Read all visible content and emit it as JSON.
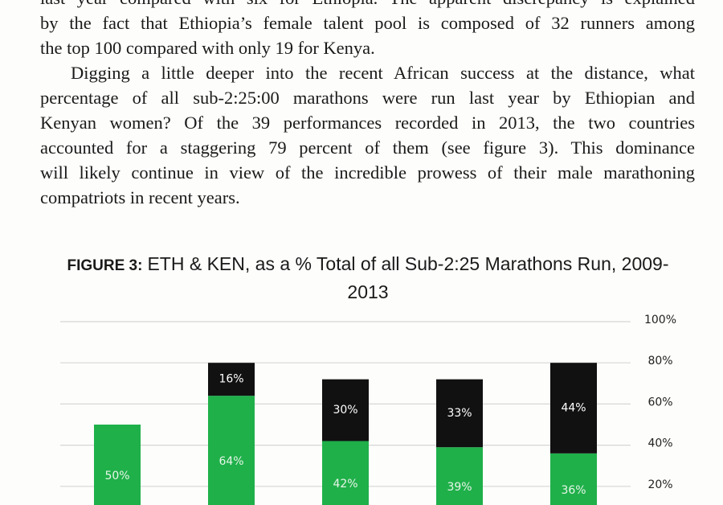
{
  "document": {
    "paragraphs": [
      {
        "indent": false,
        "lines": [
          "last year compared with six for Ethiopia. The apparent discrepancy is explained",
          "by the fact that Ethiopia’s female talent pool is composed of 32 runners among",
          "the top 100 compared with only 19 for Kenya."
        ]
      },
      {
        "indent": true,
        "lines": [
          "Digging a little deeper into the recent African success at the distance, what",
          "percentage of all sub-2:25:00 marathons were run last year by Ethiopian and",
          "Kenyan women? Of the 39 performances recorded in 2013, the two countries",
          "accounted for a staggering 79 percent of them (see figure 3). This dominance",
          "will likely continue in view of the incredible prowess of their male marathoning",
          "compatriots in recent years."
        ]
      }
    ]
  },
  "chart_data": {
    "type": "stacked-bar",
    "figure_label": "FIGURE 3:",
    "title": "ETH & KEN, as a % Total of all Sub-2:25 Marathons Run, 2009-2013",
    "series": [
      {
        "color": "#1fb04a",
        "values": [
          50,
          64,
          42,
          39,
          36
        ],
        "value_labels": [
          "50%",
          "64%",
          "42%",
          "39%",
          "36%"
        ]
      },
      {
        "color": "#111111",
        "values": [
          null,
          16,
          30,
          33,
          44
        ],
        "value_labels": [
          null,
          "16%",
          "30%",
          "33%",
          "44%"
        ]
      }
    ],
    "ylim": [
      0,
      100
    ],
    "yticks": [
      {
        "value": 20,
        "label": "20%"
      },
      {
        "value": 40,
        "label": "40%"
      },
      {
        "value": 60,
        "label": "60%"
      },
      {
        "value": 80,
        "label": "80%"
      },
      {
        "value": 100,
        "label": "100%"
      }
    ],
    "grid": true
  }
}
